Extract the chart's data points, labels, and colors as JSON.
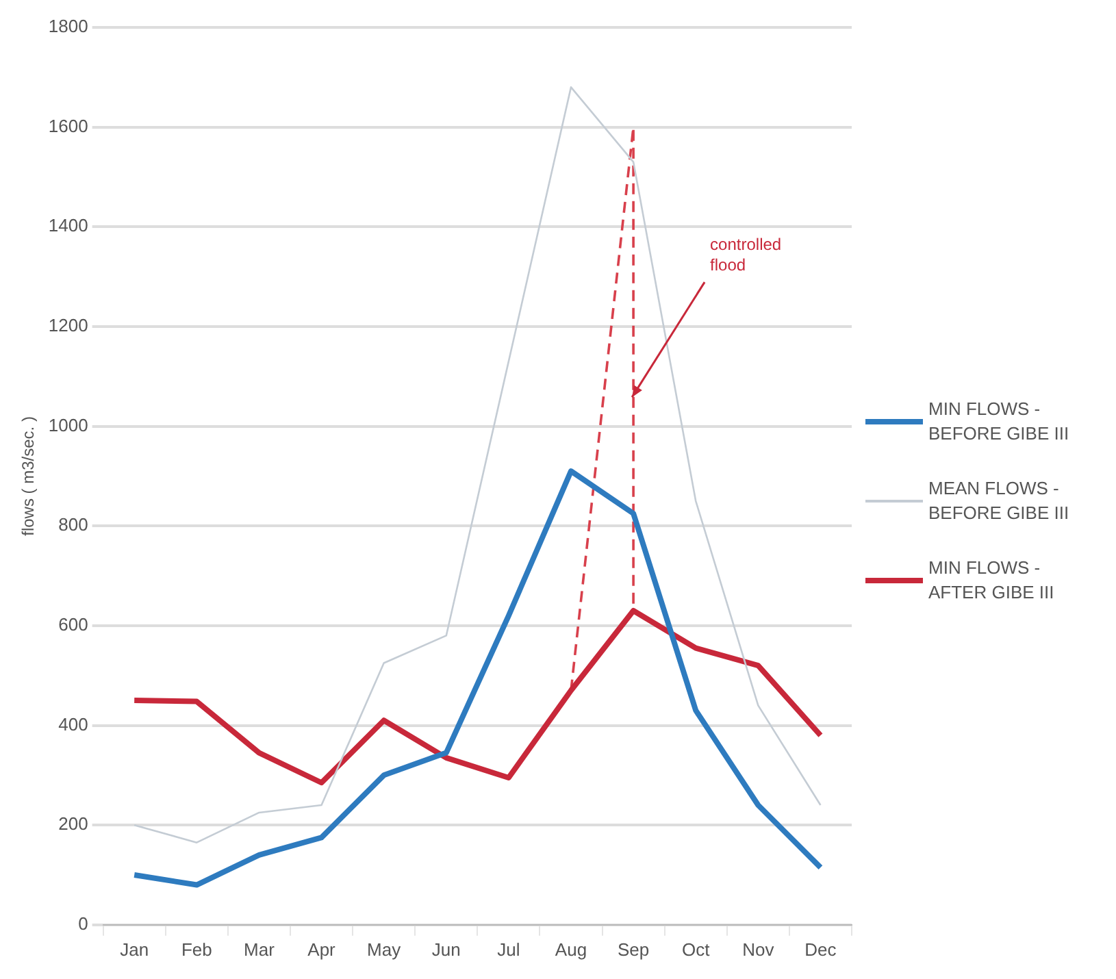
{
  "chart_data": {
    "type": "line",
    "ylabel": "flows ( m3/sec. )",
    "categories": [
      "Jan",
      "Feb",
      "Mar",
      "Apr",
      "May",
      "Jun",
      "Jul",
      "Aug",
      "Sep",
      "Oct",
      "Nov",
      "Dec"
    ],
    "ylim": [
      0,
      1800
    ],
    "yticks": [
      0,
      200,
      400,
      600,
      800,
      1000,
      1200,
      1400,
      1600,
      1800
    ],
    "grid": "y",
    "legend": "right",
    "marker": "none",
    "series": [
      {
        "name": "MIN FLOWS - BEFORE GIBE III",
        "color": "#2e7bbf",
        "values": [
          100,
          80,
          140,
          175,
          300,
          345,
          620,
          910,
          825,
          430,
          240,
          115
        ]
      },
      {
        "name": "MEAN FLOWS - BEFORE GIBE III",
        "color": "#c4ccd4",
        "values": [
          200,
          165,
          225,
          240,
          525,
          580,
          1130,
          1680,
          1530,
          850,
          440,
          240
        ]
      },
      {
        "name": "MIN FLOWS - AFTER GIBE III",
        "color": "#c8283a",
        "values": [
          450,
          448,
          345,
          285,
          410,
          335,
          295,
          470,
          630,
          555,
          520,
          380
        ]
      },
      {
        "color": "#d8404c",
        "line_style": "dashed",
        "x": [
          "Aug",
          "Sep",
          "Sep"
        ],
        "values": [
          470,
          1600,
          630
        ]
      }
    ],
    "annotations": [
      {
        "text": "controlled flood",
        "x": "Sep",
        "y": 1050
      }
    ]
  }
}
